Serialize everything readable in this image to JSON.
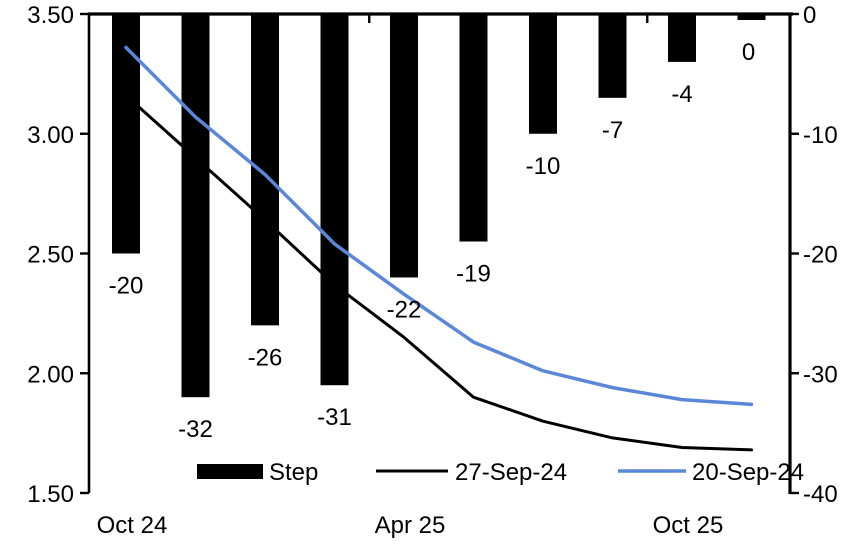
{
  "chart_data": {
    "type": "combo-bar-line",
    "title": "",
    "n_categories": 10,
    "x_tick_labels": [
      {
        "label": "Oct 24",
        "category_index": 0
      },
      {
        "label": "Apr 25",
        "category_index": 4
      },
      {
        "label": "Oct 25",
        "category_index": 8
      }
    ],
    "bar_series": {
      "name": "Step",
      "axis": "right",
      "color": "#000000",
      "values": [
        -20,
        -32,
        -26,
        -31,
        -22,
        -19,
        -10,
        -7,
        -4,
        -0.5
      ],
      "data_labels": [
        "-20",
        "-32",
        "-26",
        "-31",
        "-22",
        "-19",
        "-10",
        "-7",
        "-4",
        "0"
      ]
    },
    "line_series": [
      {
        "name": "27-Sep-24",
        "axis": "left",
        "color": "#000000",
        "stroke_width": 3,
        "values": [
          3.16,
          2.9,
          2.64,
          2.37,
          2.15,
          1.9,
          1.8,
          1.73,
          1.69,
          1.68
        ]
      },
      {
        "name": "20-Sep-24",
        "axis": "left",
        "color": "#5a87d7",
        "stroke_width": 3.5,
        "values": [
          3.36,
          3.07,
          2.83,
          2.54,
          2.33,
          2.13,
          2.01,
          1.94,
          1.89,
          1.87
        ]
      }
    ],
    "left_axis": {
      "min": 1.5,
      "max": 3.5,
      "ticks": [
        "3.50",
        "3.00",
        "2.50",
        "2.00",
        "1.50"
      ]
    },
    "right_axis": {
      "min": -40,
      "max": 0,
      "ticks": [
        "0",
        "-10",
        "-20",
        "-30",
        "-40"
      ]
    },
    "grid": "off",
    "legend_position": "bottom-inside",
    "legend": [
      {
        "label": "Step",
        "swatch": "bar",
        "color": "#000000"
      },
      {
        "label": "27-Sep-24",
        "swatch": "line",
        "color": "#000000"
      },
      {
        "label": "20-Sep-24",
        "swatch": "line",
        "color": "#5a87d7"
      }
    ]
  }
}
